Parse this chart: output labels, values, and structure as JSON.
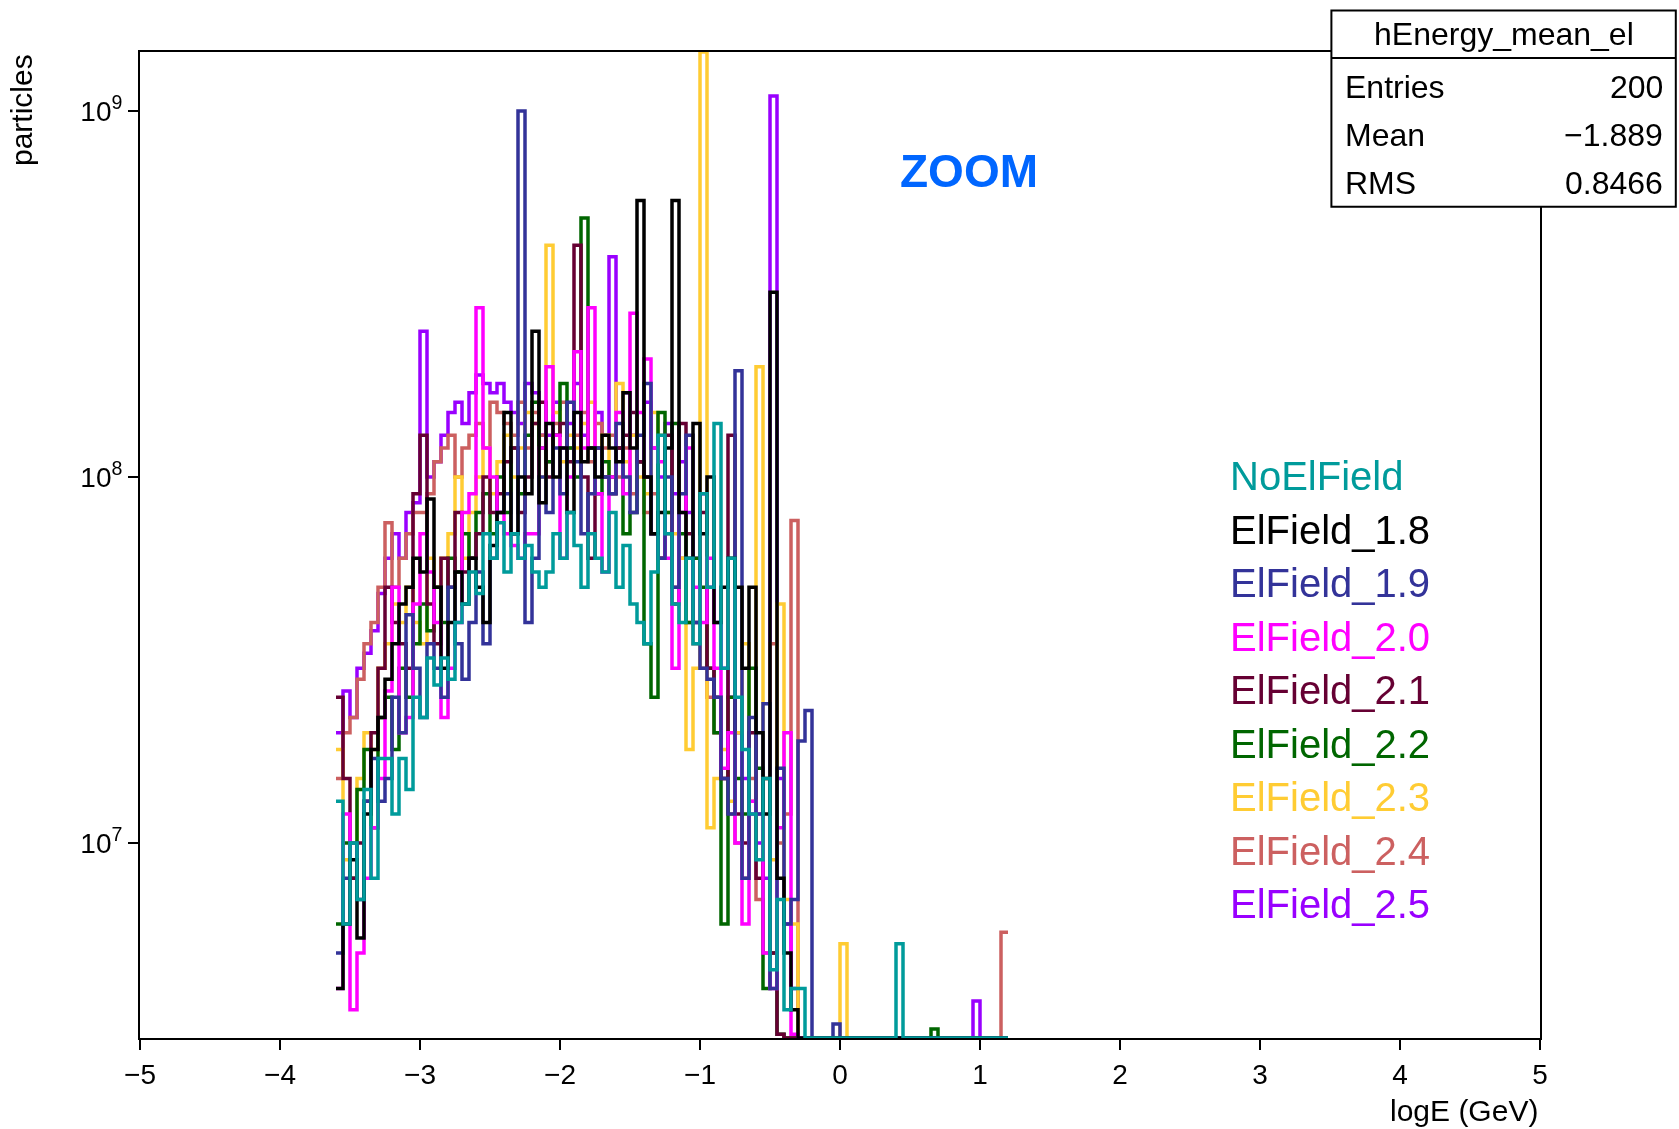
{
  "chart_data": {
    "type": "histogram",
    "xlabel": "logE (GeV)",
    "ylabel": "particles",
    "log": "y",
    "line_style": "solid",
    "xlim": [
      -5,
      5
    ],
    "ylim": [
      2930000,
      1450000000
    ],
    "xticks": [
      {
        "value": -5,
        "label": "−5"
      },
      {
        "value": -4,
        "label": "−4"
      },
      {
        "value": -3,
        "label": "−3"
      },
      {
        "value": -2,
        "label": "−2"
      },
      {
        "value": -1,
        "label": "−1"
      },
      0,
      1,
      2,
      3,
      4,
      5
    ],
    "yticks": [
      {
        "value": 10000000,
        "label": "10$^{7}$"
      },
      {
        "value": 100000000,
        "label": "10$^{8}$"
      },
      {
        "value": 1000000000,
        "label": "10$^{9}$"
      }
    ],
    "bins": [
      -3.6,
      -3.55,
      -3.5,
      -3.45,
      -3.4,
      -3.35,
      -3.3,
      -3.25,
      -3.2,
      -3.15,
      -3.1,
      -3.05,
      -3.0,
      -2.95,
      -2.9,
      -2.85,
      -2.8,
      -2.75,
      -2.7,
      -2.65,
      -2.6,
      -2.55,
      -2.5,
      -2.45,
      -2.4,
      -2.35,
      -2.3,
      -2.25,
      -2.2,
      -2.15,
      -2.1,
      -2.05,
      -2.0,
      -1.95,
      -1.9,
      -1.85,
      -1.8,
      -1.75,
      -1.7,
      -1.65,
      -1.6,
      -1.55,
      -1.5,
      -1.45,
      -1.4,
      -1.35,
      -1.3,
      -1.25,
      -1.2,
      -1.15,
      -1.1,
      -1.05,
      -1.0,
      -0.95,
      -0.9,
      -0.85,
      -0.8,
      -0.75,
      -0.7,
      -0.65,
      -0.6,
      -0.55,
      -0.5,
      -0.45,
      -0.4,
      -0.35,
      -0.3,
      -0.25,
      -0.2,
      -0.15,
      -0.1,
      -0.05,
      0.0,
      0.05,
      0.1,
      0.15,
      0.2,
      0.25,
      0.3,
      0.35,
      0.4,
      0.45,
      0.5,
      0.55,
      0.6,
      0.65,
      0.7,
      0.75,
      0.8,
      0.85,
      0.9,
      0.95,
      1.0,
      1.05,
      1.1,
      1.15,
      1.2
    ],
    "series": [
      {
        "name": "NoElField",
        "color": "#009b9b",
        "values": [
          13000000.0,
          6000000.0,
          10000000.0,
          7000000.0,
          14000000.0,
          8000000.0,
          17000000.0,
          17000000.0,
          12000000.0,
          17000000.0,
          14000000.0,
          25000000.0,
          22000000.0,
          32000000.0,
          27000000.0,
          32000000.0,
          28000000.0,
          40000000.0,
          45000000.0,
          55000000.0,
          48000000.0,
          70000000.0,
          60000000.0,
          75000000.0,
          55000000.0,
          70000000.0,
          60000000.0,
          65000000.0,
          55000000.0,
          50000000.0,
          55000000.0,
          70000000.0,
          60000000.0,
          80000000.0,
          65000000.0,
          50000000.0,
          70000000.0,
          60000000.0,
          55000000.0,
          80000000.0,
          50000000.0,
          65000000.0,
          45000000.0,
          40000000.0,
          35000000.0,
          55000000.0,
          130000000.0,
          70000000.0,
          45000000.0,
          40000000.0,
          60000000.0,
          35000000.0,
          90000000.0,
          50000000.0,
          140000000.0,
          30000000.0,
          60000000.0,
          25000000.0,
          18000000.0,
          12000000.0,
          9000000.0,
          15000000.0,
          4500000.0,
          7000000.0,
          3500000.0,
          4000000.0,
          4000000.0,
          null,
          null,
          null,
          null,
          null,
          null,
          null,
          null,
          null,
          null,
          null,
          null,
          null,
          5300000.0,
          null,
          null,
          null,
          null,
          null,
          null,
          null,
          null,
          null,
          null,
          null,
          null,
          null,
          null,
          null
        ]
      },
      {
        "name": "ElField_1.8",
        "color": "#000000",
        "values": [
          4000000.0,
          6000000.0,
          9000000.0,
          5500000.0,
          12000000.0,
          18000000.0,
          22000000.0,
          28000000.0,
          35000000.0,
          45000000.0,
          50000000.0,
          60000000.0,
          55000000.0,
          87000000.0,
          50000000.0,
          30000000.0,
          40000000.0,
          55000000.0,
          45000000.0,
          60000000.0,
          50000000.0,
          40000000.0,
          65000000.0,
          80000000.0,
          150000000.0,
          70000000.0,
          100000000.0,
          90000000.0,
          250000000.0,
          85000000.0,
          140000000.0,
          100000000.0,
          120000000.0,
          80000000.0,
          150000000.0,
          110000000.0,
          120000000.0,
          100000000.0,
          130000000.0,
          120000000.0,
          110000000.0,
          170000000.0,
          120000000.0,
          570000000.0,
          100000000.0,
          70000000.0,
          80000000.0,
          120000000.0,
          570000000.0,
          80000000.0,
          60000000.0,
          140000000.0,
          70000000.0,
          100000000.0,
          40000000.0,
          50000000.0,
          60000000.0,
          50000000.0,
          30000000.0,
          50000000.0,
          20000000.0,
          12000000.0,
          320000000.0,
          8000000.0,
          5000000.0,
          3500000.0,
          null,
          null,
          null,
          null,
          null,
          null,
          null,
          null,
          null,
          null,
          null,
          null,
          null,
          null,
          null,
          null,
          null,
          null,
          null,
          null,
          null,
          null,
          null,
          null,
          null,
          null,
          null,
          null,
          null,
          null
        ]
      },
      {
        "name": "ElField_1.9",
        "color": "#333399",
        "values": [
          5000000.0,
          8000000.0,
          10000000.0,
          7000000.0,
          13000000.0,
          17000000.0,
          13000000.0,
          15000000.0,
          25000000.0,
          20000000.0,
          42000000.0,
          30000000.0,
          22000000.0,
          35000000.0,
          30000000.0,
          25000000.0,
          50000000.0,
          35000000.0,
          28000000.0,
          40000000.0,
          55000000.0,
          35000000.0,
          60000000.0,
          80000000.0,
          90000000.0,
          70000000.0,
          1000000000.0,
          40000000.0,
          60000000.0,
          100000000.0,
          80000000.0,
          120000000.0,
          90000000.0,
          160000000.0,
          110000000.0,
          70000000.0,
          90000000.0,
          120000000.0,
          100000000.0,
          90000000.0,
          140000000.0,
          100000000.0,
          80000000.0,
          130000000.0,
          180000000.0,
          70000000.0,
          60000000.0,
          100000000.0,
          50000000.0,
          90000000.0,
          130000000.0,
          40000000.0,
          30000000.0,
          28000000.0,
          25000000.0,
          15000000.0,
          12000000.0,
          195000000.0,
          8000000.0,
          22000000.0,
          12000000.0,
          24000000.0,
          4000000.0,
          16000000.0,
          6000000.0,
          7000000.0,
          19000000.0,
          23000000.0,
          null,
          null,
          null,
          3200000.0,
          null,
          null,
          null,
          null,
          null,
          null,
          null,
          null,
          null,
          null,
          null,
          null,
          null,
          null,
          null,
          null,
          null,
          null,
          null,
          null,
          null,
          null,
          null,
          null
        ]
      },
      {
        "name": "ElField_2.0",
        "color": "#ff00ff",
        "values": [
          4000000.0,
          12000000.0,
          3500000.0,
          5000000.0,
          8000000.0,
          11000000.0,
          15000000.0,
          26000000.0,
          50000000.0,
          20000000.0,
          22000000.0,
          45000000.0,
          70000000.0,
          55000000.0,
          40000000.0,
          22000000.0,
          30000000.0,
          40000000.0,
          80000000.0,
          90000000.0,
          290000000.0,
          120000000.0,
          100000000.0,
          80000000.0,
          70000000.0,
          65000000.0,
          60000000.0,
          70000000.0,
          70000000.0,
          120000000.0,
          200000000.0,
          130000000.0,
          60000000.0,
          100000000.0,
          220000000.0,
          120000000.0,
          290000000.0,
          90000000.0,
          55000000.0,
          100000000.0,
          150000000.0,
          90000000.0,
          280000000.0,
          150000000.0,
          210000000.0,
          120000000.0,
          110000000.0,
          60000000.0,
          30000000.0,
          80000000.0,
          120000000.0,
          50000000.0,
          40000000.0,
          60000000.0,
          30000000.0,
          16000000.0,
          20000000.0,
          10000000.0,
          6000000.0,
          13000000.0,
          12000000.0,
          5000000.0,
          4000000.0,
          11000000.0,
          20000000.0,
          3000000.0,
          null,
          null,
          null,
          null,
          null,
          null,
          null,
          null,
          null,
          null,
          null,
          null,
          null,
          null,
          null,
          null,
          null,
          null,
          null,
          null,
          null,
          null,
          null,
          null,
          null,
          null,
          null,
          null,
          null,
          null
        ]
      },
      {
        "name": "ElField_2.1",
        "color": "#660033",
        "values": [
          25000000.0,
          15000000.0,
          8000000.0,
          10000000.0,
          13000000.0,
          20000000.0,
          30000000.0,
          50000000.0,
          40000000.0,
          35000000.0,
          30000000.0,
          90000000.0,
          130000000.0,
          45000000.0,
          35000000.0,
          60000000.0,
          50000000.0,
          80000000.0,
          55000000.0,
          60000000.0,
          70000000.0,
          100000000.0,
          80000000.0,
          90000000.0,
          110000000.0,
          120000000.0,
          80000000.0,
          100000000.0,
          140000000.0,
          160000000.0,
          100000000.0,
          130000000.0,
          140000000.0,
          110000000.0,
          430000000.0,
          100000000.0,
          60000000.0,
          120000000.0,
          100000000.0,
          90000000.0,
          120000000.0,
          130000000.0,
          150000000.0,
          110000000.0,
          100000000.0,
          70000000.0,
          60000000.0,
          130000000.0,
          45000000.0,
          140000000.0,
          70000000.0,
          40000000.0,
          80000000.0,
          30000000.0,
          25000000.0,
          15000000.0,
          130000000.0,
          12000000.0,
          10000000.0,
          20000000.0,
          8000000.0,
          15000000.0,
          5000000.0,
          3000000.0,
          null,
          null,
          null,
          null,
          null,
          null,
          null,
          null,
          null,
          null,
          null,
          null,
          null,
          null,
          null,
          null,
          null,
          null,
          null,
          null,
          null,
          null,
          null,
          null,
          null,
          null,
          null,
          null,
          null,
          null,
          null,
          null
        ]
      },
      {
        "name": "ElField_2.2",
        "color": "#006600",
        "values": [
          6000000.0,
          10000000.0,
          8000000.0,
          14000000.0,
          18000000.0,
          11000000.0,
          22000000.0,
          25000000.0,
          18000000.0,
          30000000.0,
          25000000.0,
          35000000.0,
          45000000.0,
          38000000.0,
          50000000.0,
          40000000.0,
          60000000.0,
          55000000.0,
          70000000.0,
          60000000.0,
          80000000.0,
          90000000.0,
          70000000.0,
          100000000.0,
          80000000.0,
          120000000.0,
          90000000.0,
          130000000.0,
          160000000.0,
          120000000.0,
          110000000.0,
          130000000.0,
          180000000.0,
          120000000.0,
          100000000.0,
          510000000.0,
          120000000.0,
          90000000.0,
          110000000.0,
          100000000.0,
          120000000.0,
          70000000.0,
          80000000.0,
          110000000.0,
          35000000.0,
          25000000.0,
          150000000.0,
          80000000.0,
          140000000.0,
          70000000.0,
          40000000.0,
          60000000.0,
          50000000.0,
          30000000.0,
          20000000.0,
          6000000.0,
          25000000.0,
          15000000.0,
          12000000.0,
          30000000.0,
          16000000.0,
          4000000.0,
          5000000.0,
          3000000.0,
          null,
          null,
          null,
          null,
          null,
          null,
          null,
          null,
          null,
          null,
          null,
          null,
          null,
          null,
          null,
          null,
          null,
          null,
          null,
          null,
          null,
          3100000.0,
          null,
          null,
          null,
          null,
          null,
          null,
          null,
          null,
          null,
          null
        ]
      },
      {
        "name": "ElField_2.3",
        "color": "#ffcc33",
        "values": [
          18000000.0,
          9000000.0,
          10000000.0,
          15000000.0,
          20000000.0,
          18000000.0,
          30000000.0,
          35000000.0,
          45000000.0,
          40000000.0,
          50000000.0,
          40000000.0,
          35000000.0,
          60000000.0,
          50000000.0,
          60000000.0,
          70000000.0,
          100000000.0,
          60000000.0,
          80000000.0,
          100000000.0,
          120000000.0,
          90000000.0,
          110000000.0,
          130000000.0,
          100000000.0,
          120000000.0,
          150000000.0,
          140000000.0,
          100000000.0,
          430000000.0,
          150000000.0,
          110000000.0,
          130000000.0,
          120000000.0,
          140000000.0,
          160000000.0,
          120000000.0,
          130000000.0,
          100000000.0,
          180000000.0,
          110000000.0,
          130000000.0,
          100000000.0,
          90000000.0,
          150000000.0,
          130000000.0,
          80000000.0,
          70000000.0,
          60000000.0,
          18000000.0,
          30000000.0,
          1450000000.0,
          11000000.0,
          15000000.0,
          18000000.0,
          13000000.0,
          20000000.0,
          35000000.0,
          13000000.0,
          200000000.0,
          15000000.0,
          9000000.0,
          45000000.0,
          7000000.0,
          6000000.0,
          null,
          null,
          null,
          null,
          null,
          null,
          5300000.0,
          null,
          null,
          null,
          null,
          null,
          null,
          null,
          null,
          null,
          null,
          null,
          null,
          null,
          null,
          null,
          null,
          null,
          null,
          null,
          null,
          null,
          null,
          null
        ]
      },
      {
        "name": "ElField_2.4",
        "color": "#cc6060",
        "values": [
          15000000.0,
          20000000.0,
          22000000.0,
          28000000.0,
          35000000.0,
          40000000.0,
          50000000.0,
          75000000.0,
          50000000.0,
          60000000.0,
          70000000.0,
          80000000.0,
          80000000.0,
          90000000.0,
          110000000.0,
          120000000.0,
          130000000.0,
          100000000.0,
          120000000.0,
          130000000.0,
          140000000.0,
          120000000.0,
          160000000.0,
          150000000.0,
          140000000.0,
          130000000.0,
          160000000.0,
          120000000.0,
          150000000.0,
          130000000.0,
          110000000.0,
          140000000.0,
          160000000.0,
          120000000.0,
          130000000.0,
          150000000.0,
          110000000.0,
          140000000.0,
          120000000.0,
          130000000.0,
          100000000.0,
          120000000.0,
          90000000.0,
          110000000.0,
          80000000.0,
          90000000.0,
          60000000.0,
          70000000.0,
          50000000.0,
          60000000.0,
          40000000.0,
          35000000.0,
          30000000.0,
          25000000.0,
          20000000.0,
          15000000.0,
          12000000.0,
          10000000.0,
          8000000.0,
          15000000.0,
          7000000.0,
          5000000.0,
          35000000.0,
          10000000.0,
          12000000.0,
          76000000.0,
          null,
          null,
          null,
          null,
          null,
          null,
          null,
          null,
          null,
          null,
          null,
          null,
          null,
          null,
          null,
          null,
          null,
          null,
          null,
          null,
          null,
          null,
          null,
          null,
          null,
          null,
          null,
          null,
          null,
          5700000.0
        ]
      },
      {
        "name": "ElField_2.5",
        "color": "#9900ff",
        "values": [
          20000000.0,
          26000000.0,
          22000000.0,
          30000000.0,
          33000000.0,
          38000000.0,
          48000000.0,
          60000000.0,
          70000000.0,
          60000000.0,
          80000000.0,
          85000000.0,
          250000000.0,
          100000000.0,
          110000000.0,
          130000000.0,
          150000000.0,
          160000000.0,
          140000000.0,
          170000000.0,
          190000000.0,
          180000000.0,
          170000000.0,
          180000000.0,
          160000000.0,
          150000000.0,
          140000000.0,
          180000000.0,
          170000000.0,
          130000000.0,
          130000000.0,
          160000000.0,
          120000000.0,
          140000000.0,
          180000000.0,
          130000000.0,
          120000000.0,
          150000000.0,
          130000000.0,
          400000000.0,
          120000000.0,
          170000000.0,
          130000000.0,
          110000000.0,
          160000000.0,
          120000000.0,
          100000000.0,
          140000000.0,
          90000000.0,
          110000000.0,
          80000000.0,
          60000000.0,
          90000000.0,
          50000000.0,
          40000000.0,
          30000000.0,
          25000000.0,
          20000000.0,
          15000000.0,
          12000000.0,
          10000000.0,
          8000000.0,
          1100000000.0,
          15000000.0,
          6000000.0,
          4000000.0,
          null,
          null,
          null,
          null,
          null,
          null,
          null,
          null,
          null,
          null,
          null,
          null,
          null,
          null,
          null,
          null,
          null,
          null,
          null,
          null,
          null,
          null,
          null,
          null,
          null,
          3700000.0,
          null,
          null,
          null,
          null
        ]
      }
    ],
    "annotations": [
      "ZOOM",
      "hEnergy_mean_el",
      "Entries",
      "200",
      "Mean",
      "−1.889",
      "RMS",
      "0.8466"
    ]
  }
}
